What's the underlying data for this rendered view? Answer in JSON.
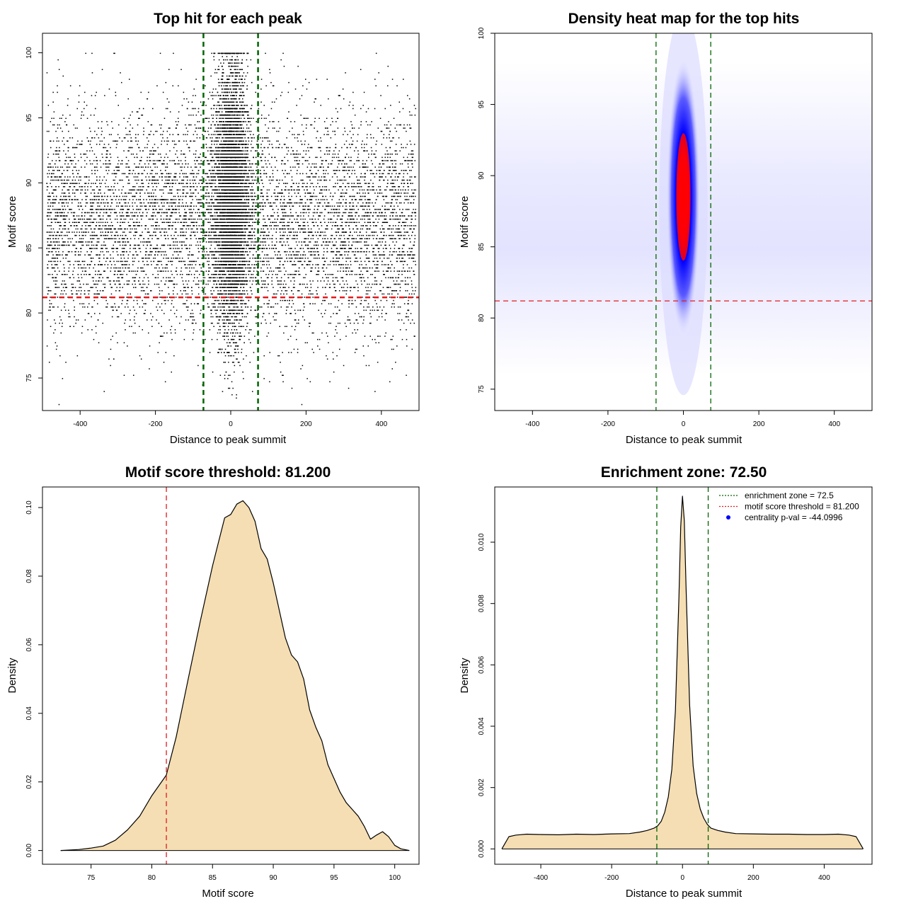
{
  "chart_data": [
    {
      "type": "scatter",
      "title": "Top hit for each peak",
      "xlabel": "Distance to peak summit",
      "ylabel": "Motif score",
      "xlim": [
        -500,
        500
      ],
      "ylim": [
        72.5,
        101.5
      ],
      "xticks": [
        "-400",
        "-200",
        "0",
        "200",
        "400"
      ],
      "yticks": [
        "75",
        "80",
        "85",
        "90",
        "95",
        "100"
      ],
      "hlines": [
        {
          "y": 81.2,
          "color": "#e41a1c",
          "style": "dashed"
        }
      ],
      "vlines": [
        {
          "x": -72.5,
          "color": "#006400",
          "style": "dashed"
        },
        {
          "x": 72.5,
          "color": "#006400",
          "style": "dashed"
        }
      ],
      "point_color": "#000000",
      "distribution": {
        "background": {
          "x_range": [
            -490,
            490
          ],
          "score_center": 87,
          "score_sd": 4.2
        },
        "central": {
          "x_center": 0,
          "x_sd": 22,
          "score_center": 89,
          "score_sd": 5
        }
      }
    },
    {
      "type": "heatmap",
      "title": "Density heat map for the top hits",
      "xlabel": "Distance to peak summit",
      "ylabel": "Motif score",
      "xlim": [
        -500,
        500
      ],
      "ylim": [
        73.5,
        100
      ],
      "xticks": [
        "-400",
        "-200",
        "0",
        "200",
        "400"
      ],
      "yticks": [
        "75",
        "80",
        "85",
        "90",
        "95",
        "100"
      ],
      "colors": [
        "#ffffff",
        "#0000ff",
        "#ff0000"
      ],
      "hlines": [
        {
          "y": 81.2,
          "color": "#e41a1c",
          "style": "dashed"
        }
      ],
      "vlines": [
        {
          "x": -72.5,
          "color": "#006400",
          "style": "dashed"
        },
        {
          "x": 72.5,
          "color": "#006400",
          "style": "dashed"
        }
      ],
      "hotspot": {
        "x": 0,
        "y": 88.5
      }
    },
    {
      "type": "area",
      "title": "Motif score threshold: 81.200",
      "xlabel": "Motif score",
      "ylabel": "Density",
      "xlim": [
        71,
        102
      ],
      "ylim": [
        -0.004,
        0.106
      ],
      "xticks": [
        "75",
        "80",
        "85",
        "90",
        "95",
        "100"
      ],
      "yticks": [
        "0.00",
        "0.02",
        "0.04",
        "0.06",
        "0.08",
        "0.10"
      ],
      "fill": "#f5deb3",
      "x": [
        72.5,
        74,
        75,
        76,
        77,
        78,
        79,
        80,
        81,
        81.2,
        82,
        83,
        84,
        85,
        85.5,
        86,
        86.5,
        87,
        87.5,
        88,
        88.5,
        89,
        89.5,
        90,
        90.5,
        91,
        91.5,
        92,
        92.5,
        93,
        93.5,
        94,
        94.5,
        95,
        95.5,
        96,
        96.5,
        97,
        97.5,
        98,
        98.5,
        99,
        99.5,
        100,
        100.5,
        101.2
      ],
      "y": [
        0.0,
        0.0003,
        0.0007,
        0.0013,
        0.003,
        0.006,
        0.01,
        0.016,
        0.021,
        0.022,
        0.033,
        0.05,
        0.067,
        0.083,
        0.09,
        0.097,
        0.098,
        0.101,
        0.102,
        0.1,
        0.096,
        0.088,
        0.085,
        0.078,
        0.07,
        0.062,
        0.057,
        0.055,
        0.05,
        0.041,
        0.036,
        0.032,
        0.025,
        0.021,
        0.017,
        0.014,
        0.012,
        0.01,
        0.007,
        0.0033,
        0.0045,
        0.0055,
        0.004,
        0.0015,
        0.0005,
        0.0
      ],
      "vlines": [
        {
          "x": 81.2,
          "color": "#e41a1c",
          "style": "dashed"
        }
      ]
    },
    {
      "type": "area",
      "title": "Enrichment zone: 72.50",
      "xlabel": "Distance to peak summit",
      "ylabel": "Density",
      "xlim": [
        -530,
        535
      ],
      "ylim": [
        -0.0005,
        0.0118
      ],
      "xticks": [
        "-400",
        "-200",
        "0",
        "200",
        "400"
      ],
      "yticks": [
        "0.000",
        "0.002",
        "0.004",
        "0.006",
        "0.008",
        "0.010"
      ],
      "fill": "#f5deb3",
      "x": [
        -510,
        -500,
        -490,
        -470,
        -440,
        -400,
        -350,
        -300,
        -250,
        -200,
        -150,
        -120,
        -100,
        -80,
        -70,
        -60,
        -50,
        -40,
        -30,
        -20,
        -10,
        -5,
        0,
        5,
        10,
        20,
        30,
        40,
        50,
        60,
        70,
        80,
        100,
        120,
        150,
        200,
        250,
        300,
        350,
        400,
        440,
        470,
        490,
        500,
        510
      ],
      "y": [
        0.0,
        0.0002,
        0.0004,
        0.00045,
        0.00048,
        0.00047,
        0.00046,
        0.00048,
        0.00047,
        0.00049,
        0.0005,
        0.00055,
        0.0006,
        0.00068,
        0.00075,
        0.0009,
        0.0012,
        0.0017,
        0.0026,
        0.0045,
        0.0082,
        0.0105,
        0.0115,
        0.0107,
        0.0085,
        0.0047,
        0.0027,
        0.0018,
        0.0013,
        0.001,
        0.0008,
        0.00068,
        0.0006,
        0.00055,
        0.0005,
        0.00049,
        0.00048,
        0.00048,
        0.00047,
        0.00047,
        0.00048,
        0.00045,
        0.0004,
        0.0002,
        0.0
      ],
      "vlines": [
        {
          "x": -72.5,
          "color": "#006400",
          "style": "dashed"
        },
        {
          "x": 72.5,
          "color": "#006400",
          "style": "dashed"
        }
      ],
      "legend": {
        "placement": "top-right",
        "items": [
          {
            "label": "enrichment zone = 72.5",
            "color": "#006400",
            "symbol": "dotted-line"
          },
          {
            "label": "motif score threshold = 81.200",
            "color": "#e41a1c",
            "symbol": "dotted-line"
          },
          {
            "label": "centrality p-val = -44.0996",
            "color": "#0000ff",
            "symbol": "dot"
          }
        ]
      }
    }
  ]
}
